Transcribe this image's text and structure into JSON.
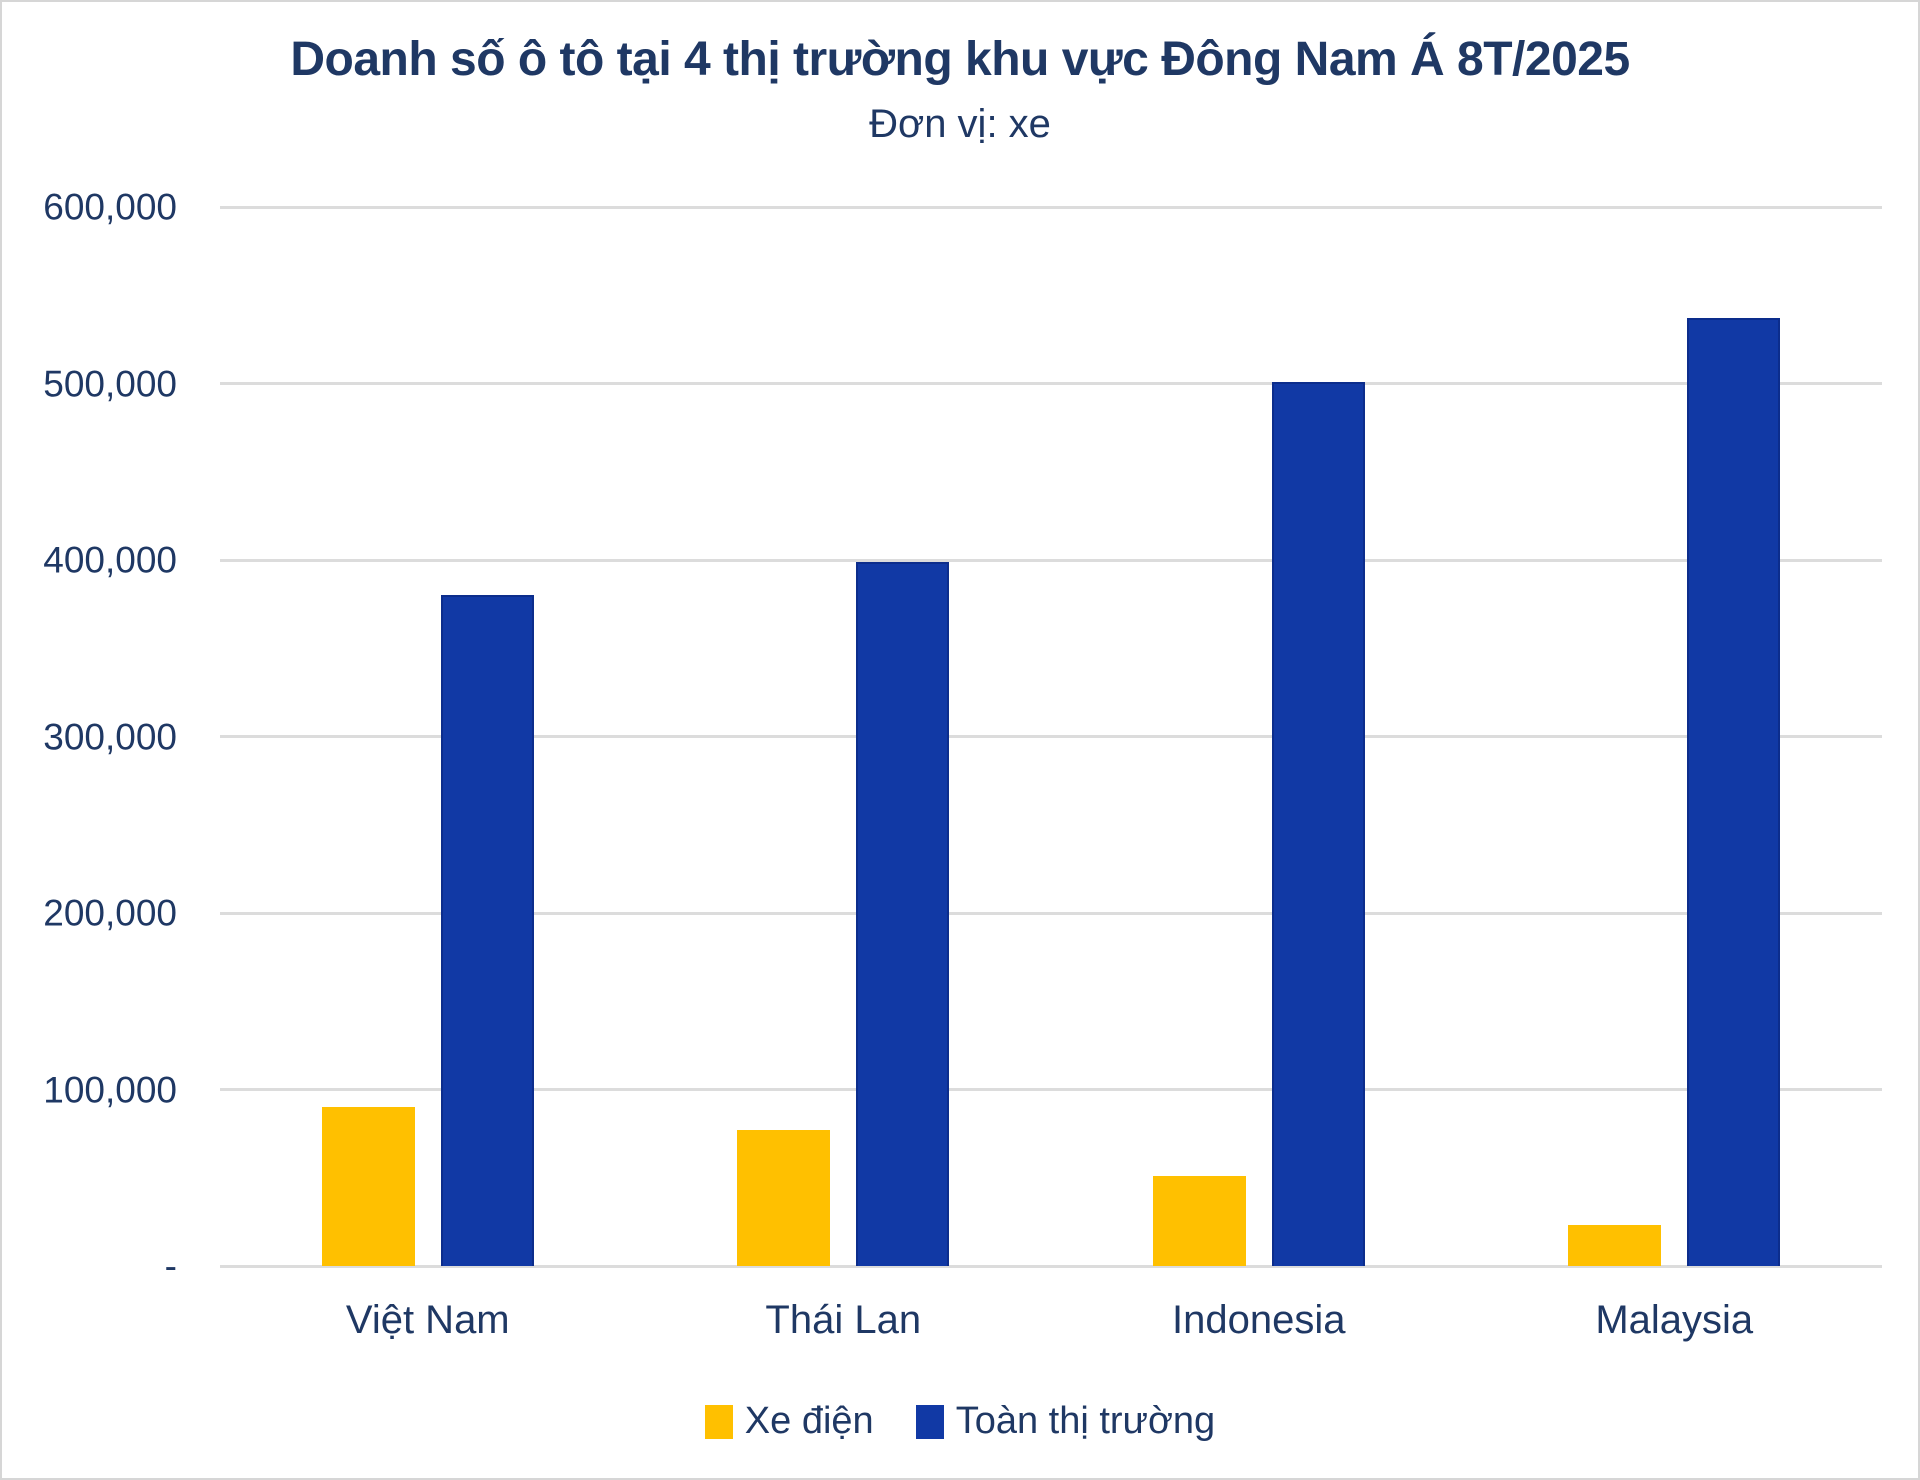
{
  "chart_data": {
    "type": "bar",
    "title": "Doanh số ô tô tại 4 thị trường khu vực Đông Nam Á 8T/2025",
    "subtitle": "Đơn vị: xe",
    "categories": [
      "Việt Nam",
      "Thái Lan",
      "Indonesia",
      "Malaysia"
    ],
    "series": [
      {
        "name": "Xe điện",
        "color": "#FFC000",
        "values": [
          90000,
          77000,
          51000,
          23000
        ]
      },
      {
        "name": "Toàn thị trường",
        "color": "#1139A5",
        "values": [
          380000,
          399000,
          501000,
          537000
        ]
      }
    ],
    "xlabel": "",
    "ylabel": "",
    "ylim": [
      0,
      600000
    ],
    "ytick_step": 100000,
    "ytick_labels_bottom_up": [
      "-",
      "100,000",
      "200,000",
      "300,000",
      "400,000",
      "500,000",
      "600,000"
    ],
    "grid": true,
    "gridline_color": "#DCDCDC",
    "text_color": "#1F3864",
    "legend_position": "bottom"
  }
}
